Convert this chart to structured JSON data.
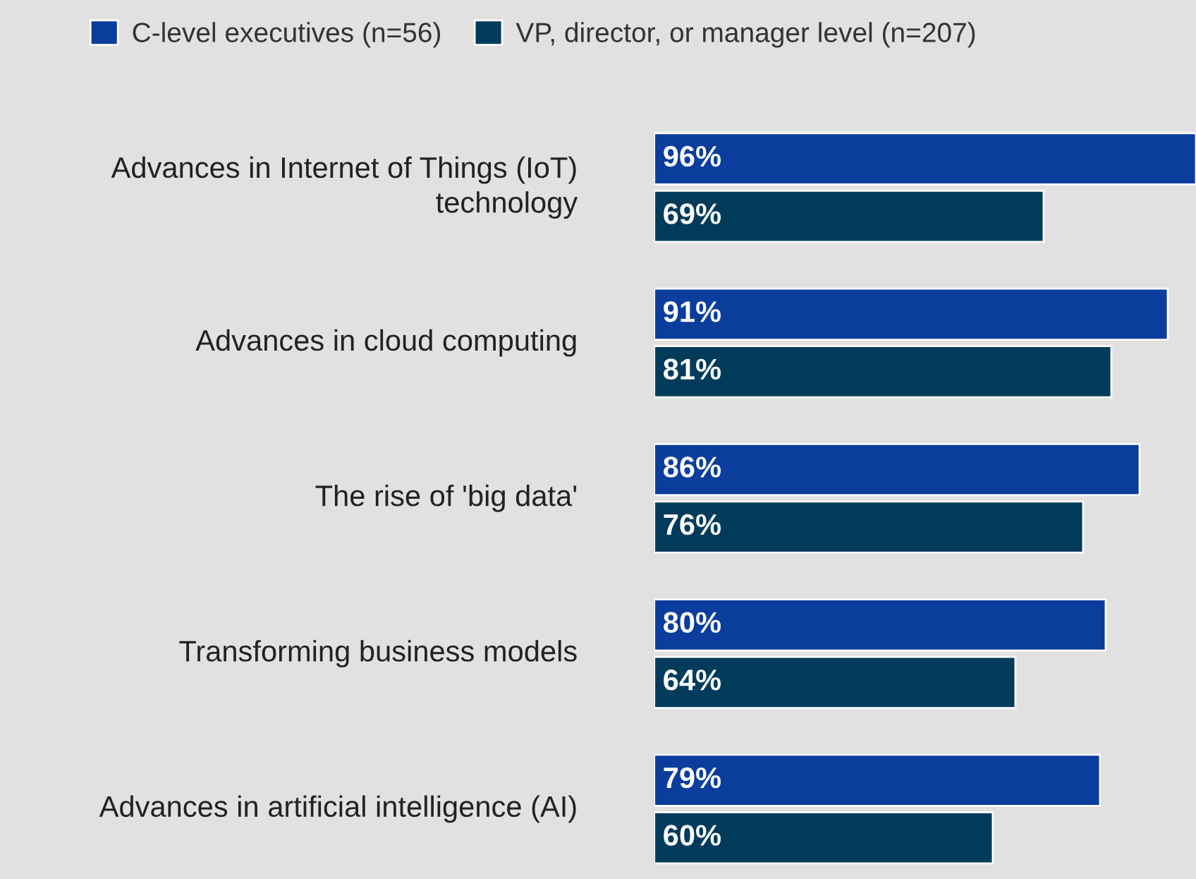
{
  "chart_data": {
    "type": "bar",
    "orientation": "horizontal",
    "categories": [
      "Advances in Internet of Things (IoT) technology",
      "Advances in cloud computing",
      "The rise of 'big data'",
      "Transforming business models",
      "Advances in artificial intelligence (AI)"
    ],
    "series": [
      {
        "name": "C-level executives (n=56)",
        "color": "#0a3d9c",
        "values": [
          96,
          91,
          86,
          80,
          79
        ],
        "value_labels": [
          "96%",
          "91%",
          "86%",
          "80%",
          "79%"
        ]
      },
      {
        "name": "VP, director, or manager level (n=207)",
        "color": "#003b5c",
        "values": [
          69,
          81,
          76,
          64,
          60
        ],
        "value_labels": [
          "69%",
          "81%",
          "76%",
          "64%",
          "60%"
        ]
      }
    ],
    "legend": "top",
    "tick_labels": "y"
  }
}
